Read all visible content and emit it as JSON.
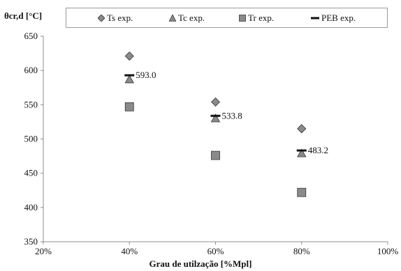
{
  "chart_data": {
    "type": "scatter",
    "ylabel": "θcr,d [°C]",
    "xlabel": "Grau de utilzação [%Mpl]",
    "x_ticks": [
      "20%",
      "40%",
      "60%",
      "80%",
      "100%"
    ],
    "y_ticks": [
      "350",
      "400",
      "450",
      "500",
      "550",
      "600",
      "650"
    ],
    "xlim": [
      20,
      100
    ],
    "ylim": [
      350,
      650
    ],
    "legend_position": "top",
    "series": [
      {
        "name": "Ts exp.",
        "marker": "diamond",
        "color": "#8a8a8a",
        "x": [
          40,
          60,
          80
        ],
        "y": [
          621,
          554,
          515
        ]
      },
      {
        "name": "Tc exp.",
        "marker": "triangle",
        "color": "#8a8a8a",
        "x": [
          40,
          60,
          80
        ],
        "y": [
          587,
          530,
          479
        ]
      },
      {
        "name": "Tr exp.",
        "marker": "square",
        "color": "#8a8a8a",
        "x": [
          40,
          60,
          80
        ],
        "y": [
          547,
          476,
          422
        ]
      },
      {
        "name": "PEB exp.",
        "marker": "dash",
        "color": "#111111",
        "x": [
          40,
          60,
          80
        ],
        "y": [
          593.0,
          533.8,
          483.2
        ]
      }
    ],
    "data_labels": [
      {
        "x": 40,
        "y": 593.0,
        "text": "593.0"
      },
      {
        "x": 60,
        "y": 533.8,
        "text": "533.8"
      },
      {
        "x": 80,
        "y": 483.2,
        "text": "483.2"
      }
    ],
    "grid": false
  }
}
